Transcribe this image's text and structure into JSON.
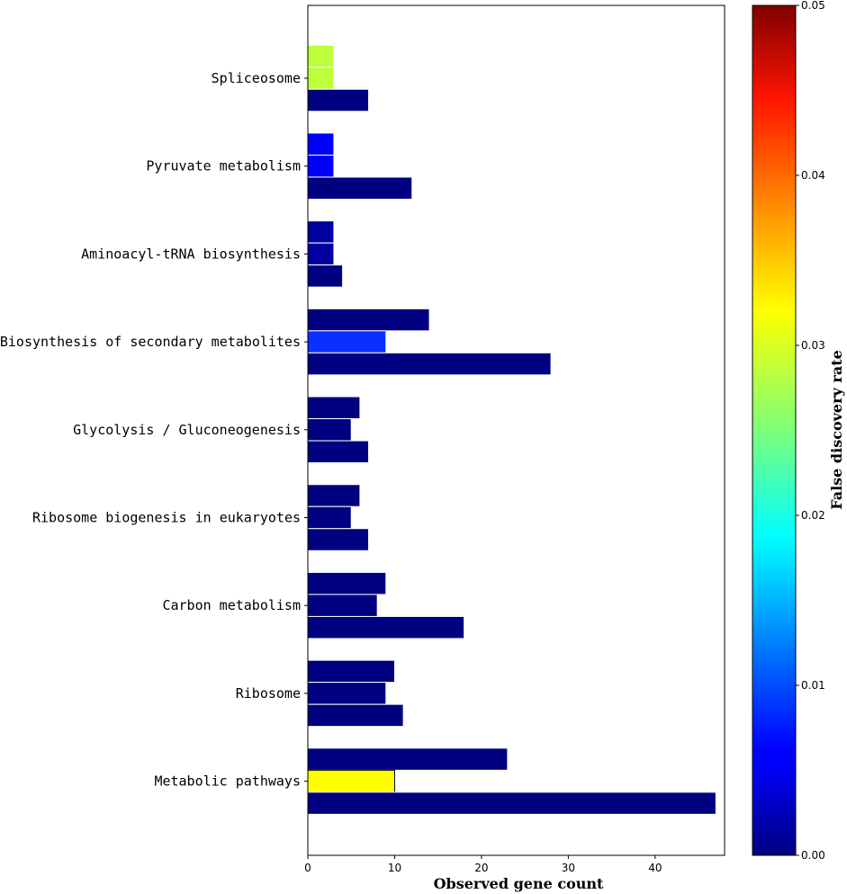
{
  "chart_data": {
    "type": "bar",
    "orientation": "horizontal",
    "xlabel": "Observed gene count",
    "xlim": [
      0,
      48
    ],
    "xticks": [
      0,
      10,
      20,
      30,
      40
    ],
    "colorbar": {
      "label": "False discovery rate",
      "range": [
        0,
        0.05
      ],
      "ticks": [
        "0.00",
        "0.01",
        "0.02",
        "0.03",
        "0.04",
        "0.05"
      ],
      "colormap": "jet"
    },
    "categories": [
      {
        "name": "Spliceosome",
        "bars": [
          {
            "value": 3,
            "fdr": 0.031,
            "color": "#bdff3a"
          },
          {
            "value": 3,
            "fdr": 0.031,
            "color": "#bdff3a"
          },
          {
            "value": 7,
            "fdr": 0.0,
            "color": "#000080"
          }
        ]
      },
      {
        "name": "Pyruvate metabolism",
        "bars": [
          {
            "value": 3,
            "fdr": 0.006,
            "color": "#0000ff"
          },
          {
            "value": 3,
            "fdr": 0.006,
            "color": "#0000ff"
          },
          {
            "value": 12,
            "fdr": 0.0,
            "color": "#000080"
          }
        ]
      },
      {
        "name": "Aminoacyl-tRNA biosynthesis",
        "bars": [
          {
            "value": 3,
            "fdr": 0.001,
            "color": "#00009f"
          },
          {
            "value": 3,
            "fdr": 0.001,
            "color": "#00009f"
          },
          {
            "value": 4,
            "fdr": 0.0,
            "color": "#000080"
          }
        ]
      },
      {
        "name": "Biosynthesis of secondary metabolites",
        "bars": [
          {
            "value": 14,
            "fdr": 0.0,
            "color": "#000080"
          },
          {
            "value": 9,
            "fdr": 0.007,
            "color": "#0a30ff"
          },
          {
            "value": 28,
            "fdr": 0.0,
            "color": "#000080"
          }
        ]
      },
      {
        "name": "Glycolysis / Gluconeogenesis",
        "bars": [
          {
            "value": 6,
            "fdr": 0.0,
            "color": "#000080"
          },
          {
            "value": 5,
            "fdr": 0.0,
            "color": "#000080"
          },
          {
            "value": 7,
            "fdr": 0.0,
            "color": "#000080"
          }
        ]
      },
      {
        "name": "Ribosome biogenesis in eukaryotes",
        "bars": [
          {
            "value": 6,
            "fdr": 0.0,
            "color": "#000080"
          },
          {
            "value": 5,
            "fdr": 0.0,
            "color": "#000080"
          },
          {
            "value": 7,
            "fdr": 0.0,
            "color": "#000080"
          }
        ]
      },
      {
        "name": "Carbon metabolism",
        "bars": [
          {
            "value": 9,
            "fdr": 0.0,
            "color": "#000080"
          },
          {
            "value": 8,
            "fdr": 0.0,
            "color": "#000080"
          },
          {
            "value": 18,
            "fdr": 0.0,
            "color": "#000080"
          }
        ]
      },
      {
        "name": "Ribosome",
        "bars": [
          {
            "value": 10,
            "fdr": 0.0,
            "color": "#000080"
          },
          {
            "value": 9,
            "fdr": 0.0,
            "color": "#000080"
          },
          {
            "value": 11,
            "fdr": 0.0,
            "color": "#000080"
          }
        ]
      },
      {
        "name": "Metabolic pathways",
        "bars": [
          {
            "value": 23,
            "fdr": 0.0,
            "color": "#000080"
          },
          {
            "value": 10,
            "fdr": 0.034,
            "color": "#ffff00"
          },
          {
            "value": 47,
            "fdr": 0.0,
            "color": "#000080"
          }
        ]
      }
    ]
  }
}
